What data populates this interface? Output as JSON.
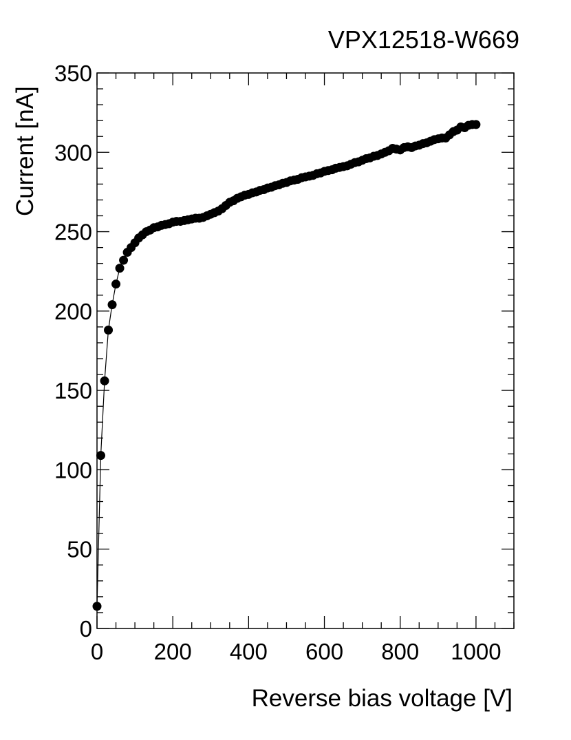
{
  "chart_data": {
    "type": "scatter",
    "title": "VPX12518-W669",
    "xlabel": "Reverse bias voltage [V]",
    "ylabel": "Current [nA]",
    "xlim": [
      0,
      1100
    ],
    "ylim": [
      0,
      350
    ],
    "xticks": [
      0,
      200,
      400,
      600,
      800,
      1000
    ],
    "yticks": [
      0,
      50,
      100,
      150,
      200,
      250,
      300,
      350
    ],
    "x_minor_step": 50,
    "y_minor_step": 10,
    "connected_line": true,
    "marker": "filled-circle",
    "color": "#000000",
    "x": [
      0,
      10,
      20,
      30,
      40,
      50,
      60,
      70,
      80,
      90,
      100,
      110,
      120,
      130,
      140,
      150,
      160,
      170,
      180,
      190,
      200,
      210,
      220,
      230,
      240,
      250,
      260,
      270,
      280,
      290,
      300,
      310,
      320,
      330,
      340,
      350,
      360,
      370,
      380,
      390,
      400,
      410,
      420,
      430,
      440,
      450,
      460,
      470,
      480,
      490,
      500,
      510,
      520,
      530,
      540,
      550,
      560,
      570,
      580,
      590,
      600,
      610,
      620,
      630,
      640,
      650,
      660,
      670,
      680,
      690,
      700,
      710,
      720,
      730,
      740,
      750,
      760,
      770,
      780,
      790,
      800,
      810,
      820,
      830,
      840,
      850,
      860,
      870,
      880,
      890,
      900,
      910,
      920,
      930,
      940,
      950,
      960,
      970,
      980,
      990,
      1000
    ],
    "y": [
      14,
      109,
      156,
      188,
      204,
      217,
      227,
      232,
      237,
      240,
      243,
      246,
      248,
      250,
      251,
      252.5,
      253,
      254,
      254.5,
      255,
      256,
      256.5,
      256.5,
      257,
      257.5,
      258,
      258.5,
      258.5,
      259,
      260,
      261,
      262,
      263,
      264.5,
      266.5,
      268.5,
      269.5,
      271,
      272,
      273,
      273.5,
      274.5,
      275,
      276,
      276.5,
      277.5,
      278,
      279,
      279.5,
      280.5,
      281,
      282,
      282.5,
      283,
      284,
      284.5,
      285,
      285.5,
      286.5,
      287,
      288,
      288.5,
      289,
      290,
      290.5,
      291,
      291.5,
      292.5,
      293.5,
      294,
      295,
      296,
      296.5,
      297.5,
      298,
      299,
      300,
      301,
      302.5,
      302,
      301.5,
      303,
      303.5,
      303,
      304,
      304.5,
      305.5,
      306,
      307,
      308,
      308.5,
      309,
      309,
      311,
      313,
      314,
      316,
      315.5,
      317,
      317.5,
      317.5
    ]
  }
}
